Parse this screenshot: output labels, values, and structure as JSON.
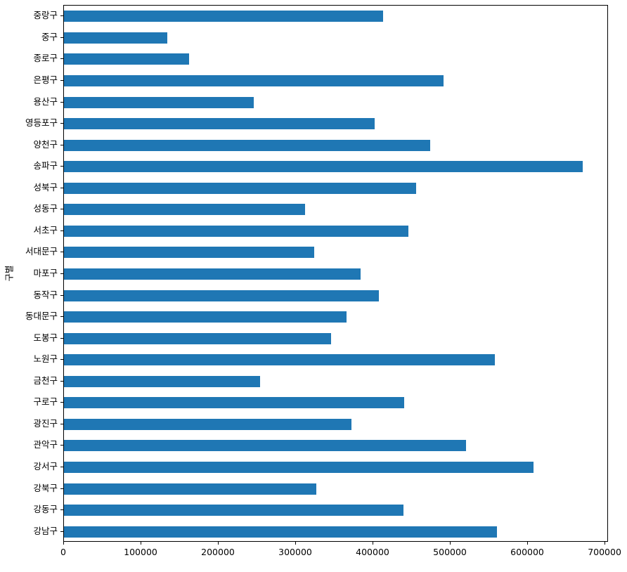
{
  "figure": {
    "background": "#ffffff",
    "spine_color": "#000000"
  },
  "chart_data": {
    "type": "bar",
    "orientation": "horizontal",
    "title": "",
    "xlabel": "",
    "ylabel": "구별",
    "bar_color": "#1f77b4",
    "grid": false,
    "legend": null,
    "xlim": [
      0,
      704500
    ],
    "x_ticks": [
      0,
      100000,
      200000,
      300000,
      400000,
      500000,
      600000,
      700000
    ],
    "x_tick_labels": [
      "0",
      "100000",
      "200000",
      "300000",
      "400000",
      "500000",
      "600000",
      "700000"
    ],
    "categories_top_to_bottom": [
      "중랑구",
      "중구",
      "종로구",
      "은평구",
      "용산구",
      "영등포구",
      "양천구",
      "송파구",
      "성북구",
      "성동구",
      "서초구",
      "서대문구",
      "마포구",
      "동작구",
      "동대문구",
      "도봉구",
      "노원구",
      "금천구",
      "구로구",
      "광진구",
      "관악구",
      "강서구",
      "강북구",
      "강동구",
      "강남구"
    ],
    "values_top_to_bottom": [
      413000,
      134000,
      162000,
      491000,
      245000,
      402000,
      474000,
      671000,
      455000,
      312000,
      445000,
      324000,
      384000,
      407000,
      365000,
      345000,
      557000,
      254000,
      440000,
      372000,
      520000,
      607000,
      326000,
      439000,
      560000
    ]
  }
}
